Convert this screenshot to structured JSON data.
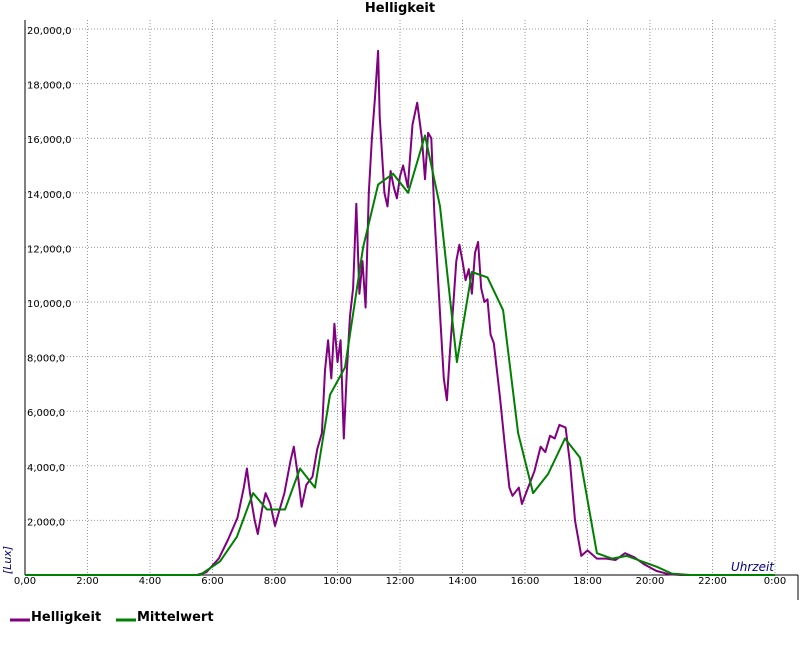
{
  "chart_data": {
    "type": "line",
    "title": "Helligkeit",
    "y_label": "[Lux]",
    "x_label": "Uhrzeit",
    "grid": true,
    "legend": "bottom",
    "xlim": [
      0,
      24
    ],
    "ylim": [
      0,
      20000
    ],
    "xticks": [
      {
        "value": 0,
        "label": "0,00"
      },
      {
        "value": 2,
        "label": "2:00"
      },
      {
        "value": 4,
        "label": "4:00"
      },
      {
        "value": 6,
        "label": "6:00"
      },
      {
        "value": 8,
        "label": "8:00"
      },
      {
        "value": 10,
        "label": "10:00"
      },
      {
        "value": 12,
        "label": "12:00"
      },
      {
        "value": 14,
        "label": "14:00"
      },
      {
        "value": 16,
        "label": "16:00"
      },
      {
        "value": 18,
        "label": "18:00"
      },
      {
        "value": 20,
        "label": "20:00"
      },
      {
        "value": 22,
        "label": "22:00"
      },
      {
        "value": 24,
        "label": "0:00"
      }
    ],
    "yticks": [
      {
        "value": 2000,
        "label": "2,000,0"
      },
      {
        "value": 4000,
        "label": "4,000,0"
      },
      {
        "value": 6000,
        "label": "6,000,0"
      },
      {
        "value": 8000,
        "label": "8,000,0"
      },
      {
        "value": 10000,
        "label": "10,000,0"
      },
      {
        "value": 12000,
        "label": "12,000,0"
      },
      {
        "value": 14000,
        "label": "14,000,0"
      },
      {
        "value": 16000,
        "label": "16,000,0"
      },
      {
        "value": 18000,
        "label": "18,000,0"
      },
      {
        "value": 20000,
        "label": "20,000,0"
      }
    ],
    "series": [
      {
        "name": "Helligkeit",
        "color": "#800080",
        "x": [
          0,
          5.5,
          5.8,
          6.2,
          6.5,
          6.8,
          7.0,
          7.1,
          7.2,
          7.35,
          7.45,
          7.6,
          7.7,
          7.85,
          8.0,
          8.1,
          8.3,
          8.5,
          8.6,
          8.75,
          8.85,
          9.0,
          9.2,
          9.35,
          9.5,
          9.6,
          9.7,
          9.8,
          9.9,
          10.0,
          10.1,
          10.2,
          10.3,
          10.4,
          10.5,
          10.6,
          10.7,
          10.8,
          10.9,
          11.0,
          11.1,
          11.2,
          11.3,
          11.35,
          11.5,
          11.6,
          11.7,
          11.8,
          11.9,
          12.0,
          12.1,
          12.25,
          12.4,
          12.55,
          12.7,
          12.8,
          12.9,
          13.0,
          13.1,
          13.2,
          13.3,
          13.4,
          13.5,
          13.6,
          13.7,
          13.8,
          13.9,
          14.0,
          14.1,
          14.2,
          14.3,
          14.4,
          14.5,
          14.6,
          14.7,
          14.8,
          14.9,
          15.0,
          15.2,
          15.35,
          15.5,
          15.6,
          15.8,
          15.9,
          16.1,
          16.3,
          16.5,
          16.65,
          16.8,
          16.95,
          17.1,
          17.3,
          17.45,
          17.6,
          17.8,
          18.0,
          18.3,
          18.6,
          18.9,
          19.2,
          19.5,
          19.8,
          20.2,
          20.6,
          21,
          24
        ],
        "values": [
          0,
          0,
          100,
          600,
          1300,
          2100,
          3200,
          3900,
          3000,
          2000,
          1500,
          2500,
          3000,
          2600,
          1800,
          2200,
          3000,
          4200,
          4700,
          3500,
          2500,
          3300,
          3600,
          4600,
          5200,
          7500,
          8600,
          7200,
          9200,
          7800,
          8600,
          5000,
          7500,
          9500,
          10500,
          13600,
          10300,
          11500,
          9800,
          14000,
          16000,
          17500,
          19200,
          16800,
          14000,
          13500,
          14800,
          14200,
          13800,
          14600,
          15000,
          14200,
          16500,
          17300,
          16000,
          14500,
          16200,
          16000,
          13200,
          11200,
          9200,
          7200,
          6400,
          8200,
          9800,
          11500,
          12100,
          11500,
          10800,
          11200,
          10300,
          11800,
          12200,
          10500,
          10000,
          10100,
          8800,
          8500,
          6500,
          4800,
          3200,
          2900,
          3200,
          2600,
          3200,
          3800,
          4700,
          4500,
          5100,
          5000,
          5500,
          5400,
          4000,
          2000,
          700,
          900,
          600,
          600,
          550,
          800,
          650,
          400,
          150,
          30,
          0,
          0
        ]
      },
      {
        "name": "Mittelwert",
        "color": "#008000",
        "x": [
          0,
          5.6,
          6.24,
          6.78,
          7.3,
          7.74,
          8.32,
          8.8,
          9.28,
          9.76,
          10.24,
          10.82,
          11.3,
          11.78,
          12.26,
          12.8,
          13.28,
          13.82,
          14.3,
          14.8,
          15.3,
          15.78,
          16.26,
          16.74,
          17.28,
          17.76,
          18.3,
          18.78,
          19.26,
          19.74,
          20.22,
          20.7,
          21.3,
          24
        ],
        "values": [
          0,
          0,
          500,
          1400,
          3000,
          2400,
          2400,
          3900,
          3200,
          6600,
          7600,
          12000,
          14300,
          14700,
          14000,
          16100,
          13500,
          7800,
          11100,
          10900,
          9700,
          5200,
          3000,
          3700,
          5000,
          4300,
          800,
          600,
          700,
          500,
          300,
          50,
          0,
          0
        ]
      }
    ]
  }
}
